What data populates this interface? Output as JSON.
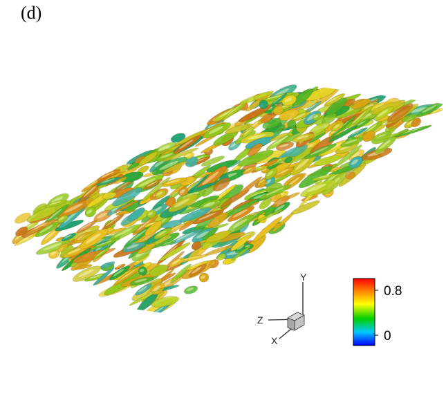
{
  "panel_label": "(d)",
  "axes_triad": {
    "y_label": "Y",
    "z_label": "Z",
    "x_label": "X"
  },
  "colorbar": {
    "max_label": "0.8",
    "min_label": "0",
    "colors": [
      "#ff0000",
      "#ff8c00",
      "#ffff00",
      "#00d000",
      "#00c8ff",
      "#0000ff"
    ]
  }
}
